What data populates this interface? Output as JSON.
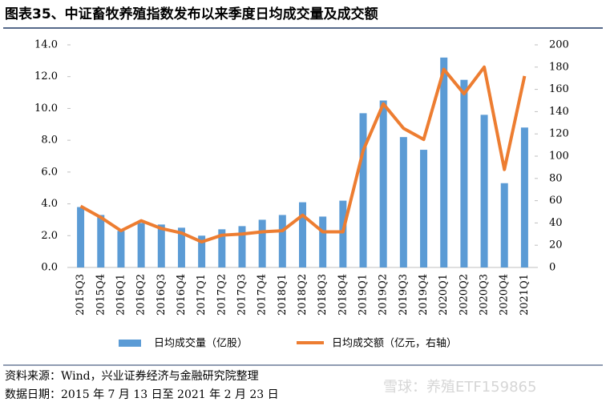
{
  "chart_data": {
    "type": "combo",
    "title": "图表35、中证畜牧养殖指数发布以来季度日均成交量及成交额",
    "categories": [
      "2015Q3",
      "2015Q4",
      "2016Q1",
      "2016Q2",
      "2016Q3",
      "2016Q4",
      "2017Q1",
      "2017Q2",
      "2017Q3",
      "2017Q4",
      "2018Q1",
      "2018Q2",
      "2018Q3",
      "2018Q4",
      "2019Q1",
      "2019Q2",
      "2019Q3",
      "2019Q4",
      "2020Q1",
      "2020Q2",
      "2020Q3",
      "2020Q4",
      "2021Q1"
    ],
    "series": [
      {
        "name": "日均成交量（亿股）",
        "type": "bar",
        "color": "#5b9bd5",
        "values": [
          3.8,
          3.3,
          2.3,
          2.8,
          2.7,
          2.5,
          2.0,
          2.4,
          2.6,
          3.0,
          3.3,
          4.1,
          3.2,
          4.2,
          9.7,
          10.5,
          8.2,
          7.4,
          13.2,
          11.8,
          9.6,
          5.3,
          8.8
        ]
      },
      {
        "name": "日均成交额（亿元，右轴）",
        "type": "line",
        "axis": "y2",
        "color": "#ed7d31",
        "values": [
          55,
          45,
          33,
          42,
          35,
          31,
          23,
          29,
          30,
          32,
          33,
          47,
          32,
          32,
          105,
          147,
          125,
          115,
          178,
          156,
          180,
          88,
          172
        ]
      }
    ],
    "ylim": [
      0,
      14
    ],
    "yticks": [
      {
        "value": 0,
        "label": "0.0"
      },
      {
        "value": 2,
        "label": "2.0"
      },
      {
        "value": 4,
        "label": "4.0"
      },
      {
        "value": 6,
        "label": "6.0"
      },
      {
        "value": 8,
        "label": "8.0"
      },
      {
        "value": 10,
        "label": "10.0"
      },
      {
        "value": 12,
        "label": "12.0"
      },
      {
        "value": 14,
        "label": "14.0"
      }
    ],
    "y2lim": [
      0,
      200
    ],
    "y2ticks": [
      0,
      20,
      40,
      60,
      80,
      100,
      120,
      140,
      160,
      180,
      200
    ]
  },
  "source": "资料来源：Wind，兴业证券经济与金融研究院整理",
  "date_note": "数据日期：2015 年 7 月 13 日至 2021 年 2 月 23 日",
  "watermark": "雪球：养殖ETF159865"
}
